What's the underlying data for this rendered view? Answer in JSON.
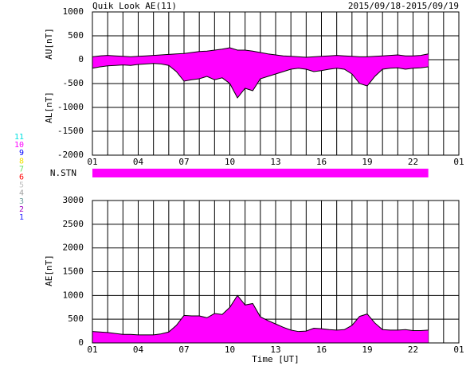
{
  "title": "Quik Look AE(11)",
  "date_range": "2015/09/18-2015/09/19",
  "xlabel": "Time [UT]",
  "station_legend": {
    "levels": [
      11,
      10,
      9,
      8,
      7,
      6,
      5,
      4,
      3,
      2,
      1
    ],
    "colors": [
      "#00e0e0",
      "#ff00ff",
      "#0000ff",
      "#f0e000",
      "#60e060",
      "#ff0000",
      "#c0c0c0",
      "#a0a0a0",
      "#70a0a0",
      "#a000c0",
      "#2020ff"
    ]
  },
  "station_bar": {
    "label": "N.STN",
    "x": [
      1,
      23
    ],
    "stations": 10
  },
  "chart_data": [
    {
      "type": "band",
      "x": [
        1,
        1.5,
        2,
        2.5,
        3,
        3.5,
        4,
        4.5,
        5,
        5.5,
        6,
        6.5,
        7,
        7.5,
        8,
        8.5,
        9,
        9.5,
        10,
        10.5,
        11,
        11.5,
        12,
        12.5,
        13,
        13.5,
        14,
        14.5,
        15,
        15.5,
        16,
        16.5,
        17,
        17.5,
        18,
        18.5,
        19,
        19.5,
        20,
        20.5,
        21,
        21.5,
        22,
        22.5,
        23
      ],
      "series": [
        {
          "name": "AU[nT]",
          "values": [
            60,
            80,
            90,
            80,
            70,
            60,
            70,
            80,
            90,
            100,
            110,
            120,
            130,
            150,
            170,
            180,
            200,
            220,
            250,
            200,
            200,
            180,
            150,
            120,
            100,
            80,
            70,
            60,
            50,
            60,
            70,
            80,
            90,
            80,
            70,
            60,
            60,
            70,
            80,
            90,
            100,
            80,
            80,
            90,
            120
          ]
        },
        {
          "name": "AL[nT]",
          "values": [
            -180,
            -150,
            -130,
            -120,
            -110,
            -120,
            -100,
            -90,
            -80,
            -90,
            -120,
            -250,
            -450,
            -420,
            -400,
            -350,
            -420,
            -380,
            -500,
            -800,
            -600,
            -650,
            -400,
            -350,
            -300,
            -250,
            -200,
            -180,
            -200,
            -250,
            -230,
            -200,
            -180,
            -200,
            -300,
            -500,
            -550,
            -350,
            -200,
            -180,
            -170,
            -200,
            -180,
            -170,
            -150
          ]
        }
      ],
      "fill": "#ff00ff",
      "line_color": "#000000",
      "xlim": [
        1,
        25
      ],
      "xticks": [
        {
          "value": 1,
          "label": "01"
        },
        {
          "value": 4,
          "label": "04"
        },
        {
          "value": 7,
          "label": "07"
        },
        10,
        13,
        16,
        19,
        22,
        {
          "value": 25,
          "label": "01"
        }
      ],
      "xgrid": [
        1,
        2,
        3,
        4,
        5,
        6,
        7,
        8,
        9,
        10,
        11,
        12,
        13,
        14,
        15,
        16,
        17,
        18,
        19,
        20,
        21,
        22,
        23,
        24,
        25
      ],
      "ylim": [
        -2000,
        1000
      ],
      "yticks": [
        1000,
        500,
        0,
        -500,
        -1000,
        -1500,
        -2000
      ],
      "grid": true
    },
    {
      "type": "area",
      "x": [
        1,
        1.5,
        2,
        2.5,
        3,
        3.5,
        4,
        4.5,
        5,
        5.5,
        6,
        6.5,
        7,
        7.5,
        8,
        8.5,
        9,
        9.5,
        10,
        10.5,
        11,
        11.5,
        12,
        12.5,
        13,
        13.5,
        14,
        14.5,
        15,
        15.5,
        16,
        16.5,
        17,
        17.5,
        18,
        18.5,
        19,
        19.5,
        20,
        20.5,
        21,
        21.5,
        22,
        22.5,
        23
      ],
      "series": [
        {
          "name": "AE[nT]",
          "values": [
            240,
            230,
            220,
            200,
            180,
            180,
            170,
            170,
            170,
            190,
            230,
            370,
            580,
            570,
            570,
            530,
            620,
            600,
            750,
            1000,
            800,
            830,
            550,
            470,
            400,
            330,
            270,
            240,
            250,
            310,
            300,
            280,
            270,
            280,
            370,
            560,
            610,
            420,
            280,
            270,
            270,
            280,
            260,
            260,
            270
          ]
        }
      ],
      "fill": "#ff00ff",
      "line_color": "#000000",
      "xlim": [
        1,
        25
      ],
      "xticks": [
        {
          "value": 1,
          "label": "01"
        },
        {
          "value": 4,
          "label": "04"
        },
        {
          "value": 7,
          "label": "07"
        },
        10,
        13,
        16,
        19,
        22,
        {
          "value": 25,
          "label": "01"
        }
      ],
      "xgrid": [
        1,
        2,
        3,
        4,
        5,
        6,
        7,
        8,
        9,
        10,
        11,
        12,
        13,
        14,
        15,
        16,
        17,
        18,
        19,
        20,
        21,
        22,
        23,
        24,
        25
      ],
      "ylim": [
        0,
        3000
      ],
      "yticks": [
        3000,
        2500,
        2000,
        1500,
        1000,
        500,
        0
      ],
      "grid": true
    }
  ]
}
